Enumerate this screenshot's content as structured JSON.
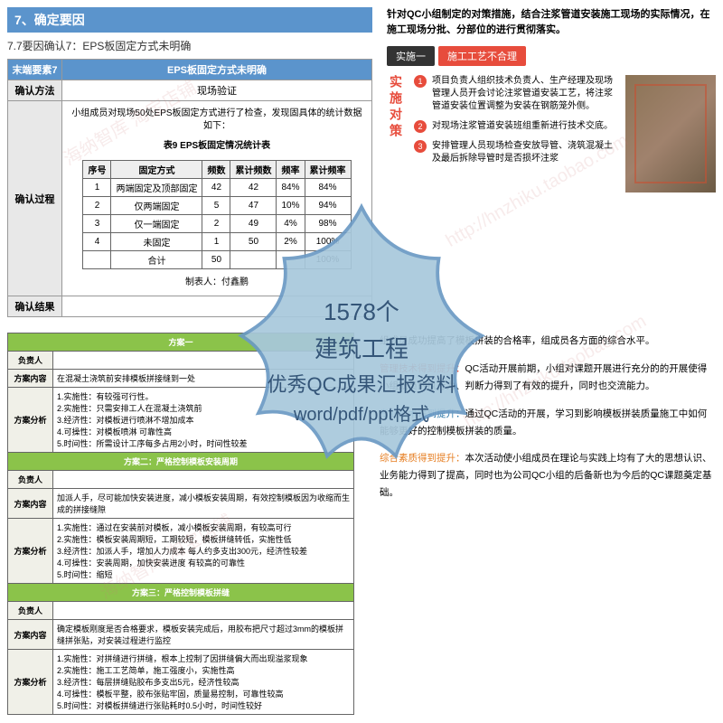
{
  "badge": {
    "line1": "1578个",
    "line2": "建筑工程",
    "line3": "优秀QC成果汇报资料",
    "line4": "word/pdf/ppt格式",
    "fill": "#a8c8dc",
    "stroke": "#6b9ac4"
  },
  "q1": {
    "header_num": "7",
    "header_text": "7、确定要因",
    "subtitle": "7.7要因确认7：EPS板固定方式未明确",
    "row_factor_label": "末端要素7",
    "row_factor_val": "EPS板固定方式未明确",
    "row_method_label": "确认方法",
    "row_method_val": "现场验证",
    "row_process_label": "确认过程",
    "desc": "小组成员对现场50处EPS板固定方式进行了检查，发现固具体的统计数据如下：",
    "table_caption": "表9  EPS板固定情况统计表",
    "stats_headers": [
      "序号",
      "固定方式",
      "频数",
      "累计频数",
      "频率",
      "累计频率"
    ],
    "stats_rows": [
      [
        "1",
        "两端固定及顶部固定",
        "42",
        "42",
        "84%",
        "84%"
      ],
      [
        "2",
        "仅两端固定",
        "5",
        "47",
        "10%",
        "94%"
      ],
      [
        "3",
        "仅一端固定",
        "2",
        "49",
        "4%",
        "98%"
      ],
      [
        "4",
        "未固定",
        "1",
        "50",
        "2%",
        "100%"
      ],
      [
        "",
        "合计",
        "50",
        "",
        "",
        "100%"
      ]
    ],
    "stats_footer": "制表人：付鑫鹏",
    "row_result_label": "确认结果"
  },
  "q2": {
    "intro": "针对QC小组制定的对策措施，结合注浆管道安装施工现场的实际情况，在施工现场分批、分部位的进行贯彻落实。",
    "tag1": "实施一",
    "tag2": "施工工艺不合理",
    "vert": "实施对策",
    "bullets": [
      "项目负责人组织技术负责人、生产经理及现场管理人员开会讨论注浆管道安装工艺，将注浆管道安装位置调整为安装在钢筋笼外侧。",
      "对现场注浆管道安装班组重新进行技术交底。",
      "安排管理人员现场检查安放导管、浇筑混凝土及最后拆除导管时是否损坏注浆"
    ]
  },
  "q3": {
    "scheme1_title": "方案一",
    "rows": [
      {
        "label": "对策方案",
        "content": "方案一",
        "head": true
      },
      {
        "label": "负责人",
        "content": ""
      },
      {
        "label": "方案内容",
        "content": "在混凝土浇筑前安排模板拼接缝到一处"
      },
      {
        "label": "方案分析",
        "content": "1.实施性：有较强可行性。\n2.实施性：只需安排工人在混凝土浇筑前\n3.经济性：对模板进行喷淋不增加成本\n4.可操性：对模板喷淋  可靠性高\n5.时间性：所需设计工序每多占用2小时，时间性较差"
      },
      {
        "label": "对策方案",
        "content": "方案二：严格控制模板安装周期",
        "head": true
      },
      {
        "label": "负责人",
        "content": ""
      },
      {
        "label": "方案内容",
        "content": "加派人手，尽可能加快安装进度，减小模板安装周期，有效控制模板因为收缩而生成的拼接缝隙"
      },
      {
        "label": "方案分析",
        "content": "1.实施性：通过在安装前对模板，减小模板安装周期，有较高可行\n2.实施性：模板安装周期短，工期较短，模板拼缝转低，实施性低\n3.经济性：加派人手，增加人力成本  每人约多支出300元，经济性较差\n4.可操性：安装周期，加快安装进度  有较高的可靠性\n5.时间性：缩短"
      },
      {
        "label": "对策方案",
        "content": "方案三：严格控制模板拼缝",
        "head": true
      },
      {
        "label": "负责人",
        "content": ""
      },
      {
        "label": "方案内容",
        "content": "确定模板刚度是否合格要求，模板安装完成后，用胶布把尺寸超过3mm的模板拼缝拼张贴，对安装过程进行监控"
      },
      {
        "label": "方案分析",
        "content": "1.实施性：对拼缝进行拼缝，根本上控制了因拼缝偏大而出现溢浆现象\n2.实施性：施工工艺简单，施工强度小，实施性高\n3.经济性：每层拼缝贴胶布多支出5元，经济性较高\n4.可操性：模板平整，胶布张贴牢固，质量易控制，可靠性较高\n5.时间性：对模板拼缝进行张贴耗时0.5小时，时间性较好"
      }
    ]
  },
  "q4": {
    "p1_pre": "组成员成功提高了模板拼装的合格率，组成员各方面的综合水平。",
    "p2_label": "管理技术得到提升：",
    "p2": "QC活动开展前期，小组对课题开展进行充分的的开展使得小组成员的执行力、判断力得到了有效的提升，同时也交流能力。",
    "p3_label": "专业技术得到提升：",
    "p3": "通过QC活动的开展，学习到影响模板拼装质量施工中如何能够更好的控制模板拼装的质量。",
    "p4_label": "综合素质得到提升：",
    "p4": "本次活动使小组成员在理论与实践上均有了大的思想认识、业务能力得到了提高，同时也为公司QC小组的后备新也为今后的QC课题奠定基础。"
  },
  "watermarks": [
    "海纳智库 淘宝店铺",
    "http://hnzhiku.taobao.com"
  ]
}
